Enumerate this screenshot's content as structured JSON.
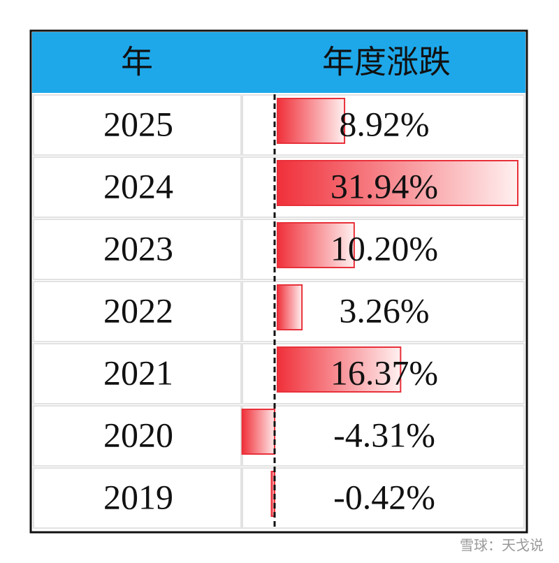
{
  "table": {
    "header": [
      "年",
      "年度涨跌"
    ],
    "rows": [
      [
        "2025",
        {
          "value": 8.92,
          "label": "8.92%"
        }
      ],
      [
        "2024",
        {
          "value": 31.94,
          "label": "31.94%"
        }
      ],
      [
        "2023",
        {
          "value": 10.2,
          "label": "10.20%"
        }
      ],
      [
        "2022",
        {
          "value": 3.26,
          "label": "3.26%"
        }
      ],
      [
        "2021",
        {
          "value": 16.37,
          "label": "16.37%"
        }
      ],
      [
        "2020",
        {
          "value": -4.31,
          "label": "-4.31%"
        }
      ],
      [
        "2019",
        {
          "value": -0.42,
          "label": "-0.42%"
        }
      ]
    ]
  },
  "watermark": "雪球：天戈说"
}
